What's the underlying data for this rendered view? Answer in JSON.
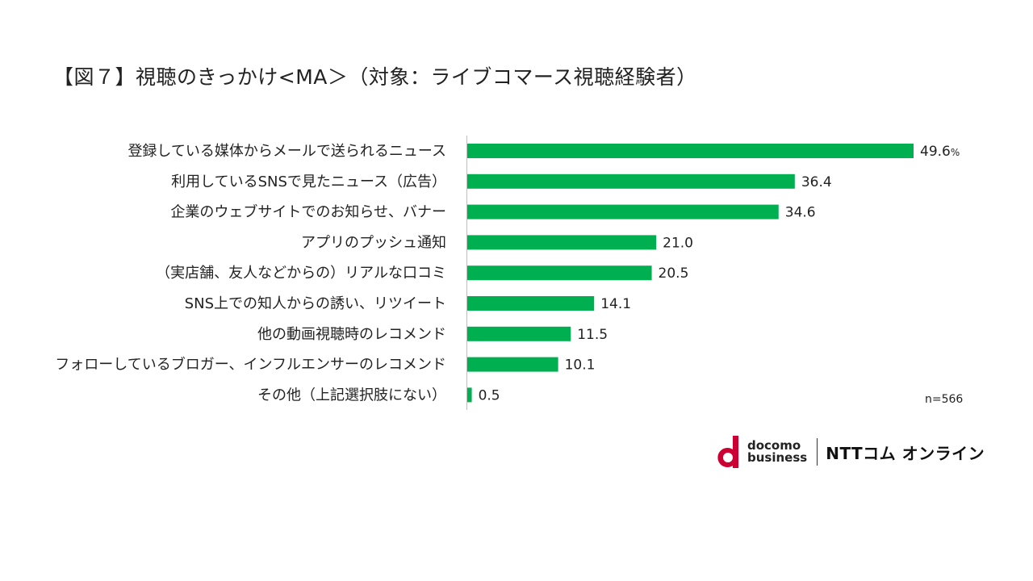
{
  "title": "【図７】視聴のきっかけ<MA＞（対象：ライブコマース視聴経験者）",
  "sample_note": "n=566",
  "first_value_unit": "%",
  "colors": {
    "bar": "#00b050",
    "axis": "#bfbfbf"
  },
  "chart_data": {
    "type": "bar",
    "orientation": "horizontal",
    "title": "【図７】視聴のきっかけ<MA＞（対象：ライブコマース視聴経験者）",
    "unit": "%",
    "categories": [
      "登録している媒体からメールで送られるニュース",
      "利用しているSNSで見たニュース（広告）",
      "企業のウェブサイトでのお知らせ、バナー",
      "アプリのプッシュ通知",
      "（実店舗、友人などからの）リアルな口コミ",
      "SNS上での知人からの誘い、リツイート",
      "他の動画視聴時のレコメンド",
      "フォローしているブロガー、インフルエンサーのレコメンド",
      "その他（上記選択肢にない）"
    ],
    "values": [
      49.6,
      36.4,
      34.6,
      21.0,
      20.5,
      14.1,
      11.5,
      10.1,
      0.5
    ],
    "value_labels": [
      "49.6",
      "36.4",
      "34.6",
      "21.0",
      "20.5",
      "14.1",
      "11.5",
      "10.1",
      "0.5"
    ],
    "xlim": [
      0,
      49.6
    ]
  },
  "logo": {
    "docomo_line1": "docomo",
    "docomo_line2": "business",
    "ntt": "NTTコム オンライン"
  }
}
